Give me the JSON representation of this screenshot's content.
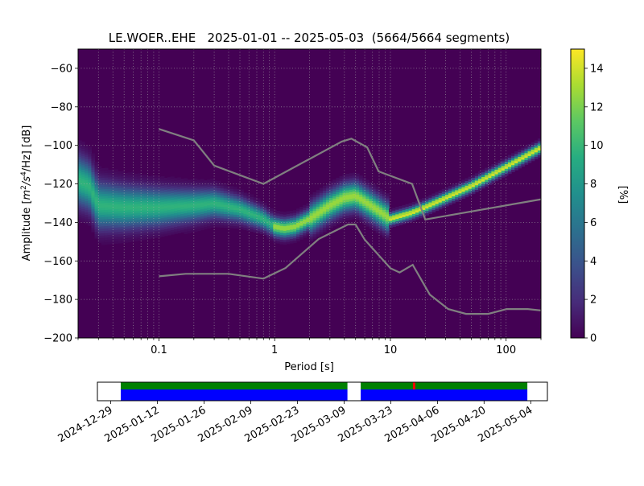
{
  "chart_data": [
    {
      "type": "heatmap",
      "title": "LE.WOER..EHE   2025-01-01 -- 2025-05-03  (5664/5664 segments)",
      "xlabel": "Period [s]",
      "ylabel": "Amplitude [m²/s⁴/Hz] [dB]",
      "ylabel_parts": {
        "prefix": "Amplitude [",
        "m": "m",
        "m_exp": "2",
        "s": "/s",
        "s_exp": "4",
        "tail": "/Hz] [dB]"
      },
      "x_scale": "log",
      "xlim": [
        0.02,
        200
      ],
      "ylim": [
        -200,
        -50
      ],
      "x_ticks": [
        {
          "value": 0.1,
          "label": "0.1"
        },
        {
          "value": 1,
          "label": "1"
        },
        {
          "value": 10,
          "label": "10"
        },
        {
          "value": 100,
          "label": "100"
        }
      ],
      "y_ticks": [
        {
          "value": -60,
          "label": "−60"
        },
        {
          "value": -80,
          "label": "−80"
        },
        {
          "value": -100,
          "label": "−100"
        },
        {
          "value": -120,
          "label": "−120"
        },
        {
          "value": -140,
          "label": "−140"
        },
        {
          "value": -160,
          "label": "−160"
        },
        {
          "value": -180,
          "label": "−180"
        },
        {
          "value": -200,
          "label": "−200"
        }
      ],
      "grid": true,
      "colormap": "viridis",
      "colorbar": {
        "label": "[%]",
        "range": [
          0,
          15
        ],
        "ticks": [
          {
            "value": 0,
            "label": "0"
          },
          {
            "value": 2,
            "label": "2"
          },
          {
            "value": 4,
            "label": "4"
          },
          {
            "value": 6,
            "label": "6"
          },
          {
            "value": 8,
            "label": "8"
          },
          {
            "value": 10,
            "label": "10"
          },
          {
            "value": 12,
            "label": "12"
          },
          {
            "value": 14,
            "label": "14"
          }
        ]
      },
      "mode_curve": {
        "period": [
          0.02,
          0.025,
          0.03,
          0.05,
          0.1,
          0.2,
          0.3,
          0.5,
          0.8,
          1.0,
          1.2,
          1.5,
          2.0,
          3.0,
          4.0,
          5.0,
          6.0,
          8.0,
          10.0,
          15.0,
          20.0,
          50.0,
          100.0,
          200.0
        ],
        "db": [
          -118,
          -121,
          -131,
          -132,
          -132,
          -131,
          -130,
          -133,
          -138,
          -142,
          -143,
          -142,
          -138,
          -131,
          -127,
          -126,
          -129,
          -134,
          -138,
          -135,
          -132,
          -121,
          -111,
          -101
        ]
      },
      "noise_models": [
        {
          "period": [
            0.1,
            0.2,
            0.3,
            0.8,
            3.8,
            4.6,
            6.3,
            7.9,
            15.4,
            20.0,
            200.0
          ],
          "db": [
            -91.5,
            -97.4,
            -110.5,
            -120.0,
            -98.0,
            -96.5,
            -101.0,
            -113.5,
            -120.0,
            -138.5,
            -128.0
          ]
        },
        {
          "period": [
            0.1,
            0.17,
            0.4,
            0.8,
            1.24,
            2.4,
            4.3,
            5.0,
            6.0,
            10.0,
            12.0,
            15.6,
            21.9,
            31.6,
            45.0,
            70.0,
            101.0,
            154.0,
            200.0
          ],
          "db": [
            -168.0,
            -166.7,
            -166.7,
            -169.2,
            -163.7,
            -148.6,
            -141.1,
            -141.1,
            -149.0,
            -163.8,
            -166.0,
            -162.0,
            -177.5,
            -185.0,
            -187.5,
            -187.5,
            -185.0,
            -185.0,
            -185.7
          ]
        }
      ]
    },
    {
      "type": "timeline",
      "date_range": [
        "2024-12-25",
        "2025-05-09"
      ],
      "tick_labels": [
        {
          "date": "2024-12-29",
          "label": "2024-12-29"
        },
        {
          "date": "2025-01-12",
          "label": "2025-01-12"
        },
        {
          "date": "2025-01-26",
          "label": "2025-01-26"
        },
        {
          "date": "2025-02-09",
          "label": "2025-02-09"
        },
        {
          "date": "2025-02-23",
          "label": "2025-02-23"
        },
        {
          "date": "2025-03-09",
          "label": "2025-03-09"
        },
        {
          "date": "2025-03-23",
          "label": "2025-03-23"
        },
        {
          "date": "2025-04-06",
          "label": "2025-04-06"
        },
        {
          "date": "2025-04-20",
          "label": "2025-04-20"
        },
        {
          "date": "2025-05-04",
          "label": "2025-05-04"
        }
      ],
      "data_spans": [
        {
          "start": "2025-01-01",
          "end": "2025-03-10"
        },
        {
          "start": "2025-03-14",
          "end": "2025-05-03"
        }
      ],
      "marker_date": "2025-03-30",
      "colors": {
        "available": "#008000",
        "used": "#0000ff",
        "marker": "#ff0000"
      }
    }
  ]
}
